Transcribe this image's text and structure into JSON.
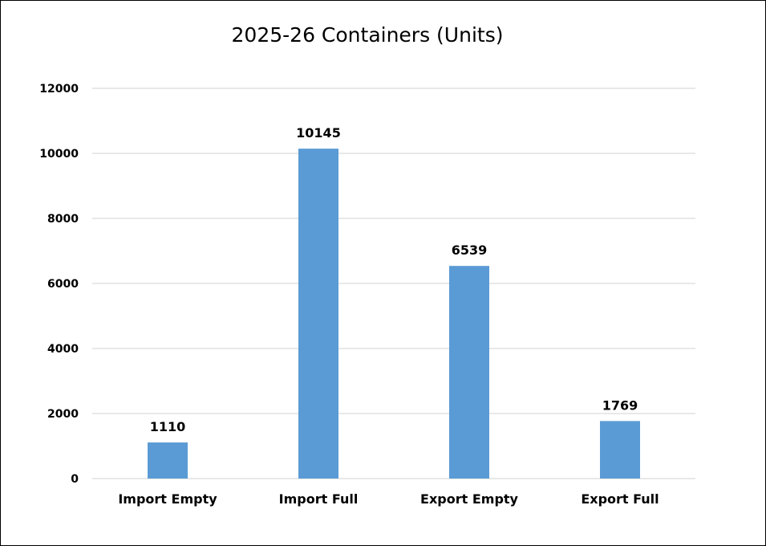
{
  "chart_data": {
    "type": "bar",
    "title": "2025-26 Containers (Units)",
    "categories": [
      "Import Empty",
      "Import Full",
      "Export Empty",
      "Export Full"
    ],
    "values": [
      1110,
      10145,
      6539,
      1769
    ],
    "data_labels": [
      "1110",
      "10145",
      "6539",
      "1769"
    ],
    "yticks": [
      "0",
      "2000",
      "4000",
      "6000",
      "8000",
      "10000",
      "12000"
    ],
    "ylim": [
      0,
      12000
    ],
    "xlabel": "",
    "ylabel": "",
    "grid": true,
    "legend": "none",
    "bar_color": "#5B9BD5",
    "grid_color": "#D9D9D9"
  }
}
